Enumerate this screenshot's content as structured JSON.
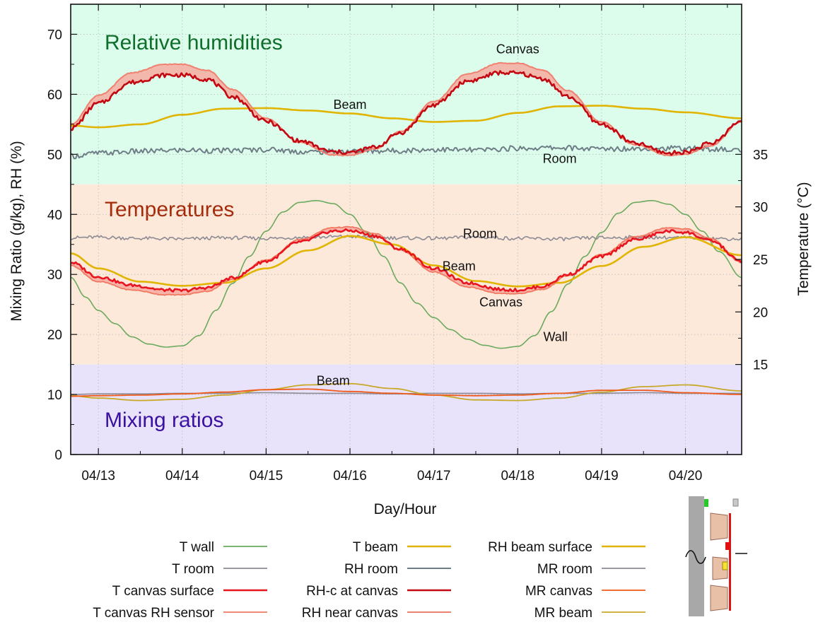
{
  "chart_data": {
    "type": "line",
    "xlabel": "Day/Hour",
    "ylabel_left": "Mixing Ratio (g/kg), RH (%)",
    "ylabel_right": "Temperature (°C)",
    "xlim": [
      12.67,
      20.67
    ],
    "ylim_left": [
      0,
      75
    ],
    "ylim_right_note": "right axis: 15 at left 15, 35 at left 50",
    "x_ticks": [
      {
        "value": 13,
        "label": "04/13"
      },
      {
        "value": 14,
        "label": "04/14"
      },
      {
        "value": 15,
        "label": "04/15"
      },
      {
        "value": 16,
        "label": "04/16"
      },
      {
        "value": 17,
        "label": "04/17"
      },
      {
        "value": 18,
        "label": "04/18"
      },
      {
        "value": 19,
        "label": "04/19"
      },
      {
        "value": 20,
        "label": "04/20"
      }
    ],
    "y_ticks_left": [
      {
        "value": 0,
        "label": "0"
      },
      {
        "value": 10,
        "label": "10"
      },
      {
        "value": 20,
        "label": "20"
      },
      {
        "value": 30,
        "label": "30"
      },
      {
        "value": 40,
        "label": "40"
      },
      {
        "value": 50,
        "label": "50"
      },
      {
        "value": 60,
        "label": "60"
      },
      {
        "value": 70,
        "label": "70"
      }
    ],
    "y_ticks_right": [
      {
        "value": 15,
        "label": "15"
      },
      {
        "value": 20,
        "label": "20"
      },
      {
        "value": 25,
        "label": "25"
      },
      {
        "value": 30,
        "label": "30"
      },
      {
        "value": 35,
        "label": "35"
      }
    ],
    "grid": true,
    "bands": [
      {
        "name": "Relative humidities",
        "from": 45,
        "to": 75,
        "fill": "#dcfcec",
        "text_color": "#0f6e2a"
      },
      {
        "name": "Temperatures",
        "from": 15,
        "to": 45,
        "fill": "#fde9da",
        "text_color": "#a42a0a"
      },
      {
        "name": "Mixing ratios",
        "from": 0,
        "to": 15,
        "fill": "#e8e3fb",
        "text_color": "#3a10a0"
      }
    ],
    "annotations": [
      {
        "text": "Canvas",
        "x": 18.0,
        "y": 67.5
      },
      {
        "text": "Beam",
        "x": 16.0,
        "y": 58.3
      },
      {
        "text": "Room",
        "x": 18.5,
        "y": 49.3
      },
      {
        "text": "Room",
        "x": 17.55,
        "y": 36.8
      },
      {
        "text": "Beam",
        "x": 17.3,
        "y": 31.4
      },
      {
        "text": "Canvas",
        "x": 17.8,
        "y": 25.4
      },
      {
        "text": "Wall",
        "x": 18.45,
        "y": 19.6
      },
      {
        "text": "Beam",
        "x": 15.8,
        "y": 12.3
      }
    ],
    "series": [
      {
        "name": "T wall",
        "color": "#6aaa5e",
        "width": 1.6,
        "x": [
          12.67,
          12.85,
          13.0,
          13.2,
          13.4,
          13.6,
          13.8,
          14.0,
          14.2,
          14.4,
          14.6,
          14.8,
          15.0,
          15.2,
          15.4,
          15.6,
          15.8,
          16.0,
          16.2,
          16.4,
          16.6,
          16.8,
          17.0,
          17.2,
          17.4,
          17.6,
          17.8,
          18.0,
          18.2,
          18.4,
          18.6,
          18.8,
          19.0,
          19.2,
          19.4,
          19.6,
          19.8,
          20.0,
          20.2,
          20.4,
          20.67
        ],
        "y": [
          29.5,
          26.2,
          24.0,
          21.8,
          19.6,
          18.4,
          17.9,
          18.1,
          19.8,
          24.0,
          28.5,
          33.0,
          37.2,
          40.4,
          42.0,
          42.3,
          41.8,
          40.0,
          37.0,
          33.0,
          28.6,
          25.2,
          22.8,
          20.8,
          19.2,
          18.2,
          17.7,
          18.0,
          19.8,
          23.8,
          28.4,
          33.0,
          37.0,
          40.2,
          42.0,
          42.3,
          41.7,
          40.0,
          37.2,
          33.8,
          29.5
        ]
      },
      {
        "name": "T room",
        "color": "#8c8a94",
        "width": 1.6,
        "x": [
          12.67,
          13.0,
          13.5,
          14.0,
          14.5,
          15.0,
          15.5,
          16.0,
          16.5,
          17.0,
          17.5,
          18.0,
          18.5,
          19.0,
          19.5,
          20.0,
          20.67
        ],
        "y": [
          36.1,
          36.2,
          36.0,
          35.9,
          36.1,
          36.0,
          36.2,
          36.3,
          36.1,
          36.0,
          36.2,
          36.0,
          35.9,
          36.1,
          36.2,
          36.1,
          35.9
        ]
      },
      {
        "name": "T canvas surface",
        "color": "#e8141e",
        "width": 2.6,
        "x": [
          12.67,
          13.0,
          13.4,
          13.8,
          14.0,
          14.3,
          14.6,
          15.0,
          15.4,
          15.8,
          16.0,
          16.3,
          16.6,
          17.0,
          17.4,
          17.8,
          18.0,
          18.3,
          18.6,
          19.0,
          19.4,
          19.8,
          20.0,
          20.3,
          20.67
        ],
        "y": [
          32.0,
          29.6,
          28.2,
          27.4,
          27.3,
          27.8,
          29.4,
          32.2,
          35.4,
          37.2,
          37.3,
          36.4,
          34.2,
          31.0,
          28.6,
          27.5,
          27.4,
          28.0,
          30.0,
          33.0,
          35.8,
          37.2,
          37.0,
          35.6,
          32.2
        ]
      },
      {
        "name": "T canvas RH sensor",
        "color": "#f07860",
        "width": 1.8,
        "x": [
          12.67,
          13.0,
          13.4,
          13.8,
          14.0,
          14.3,
          14.6,
          15.0,
          15.4,
          15.8,
          16.0,
          16.3,
          16.6,
          17.0,
          17.4,
          17.8,
          18.0,
          18.3,
          18.6,
          19.0,
          19.4,
          19.8,
          20.0,
          20.3,
          20.67
        ],
        "y": [
          31.5,
          28.8,
          27.4,
          26.6,
          26.6,
          27.2,
          29.2,
          32.4,
          35.8,
          37.8,
          37.9,
          36.8,
          34.0,
          30.4,
          27.9,
          26.8,
          26.8,
          27.5,
          29.8,
          33.3,
          36.3,
          37.8,
          37.6,
          36.0,
          32.0
        ]
      },
      {
        "name": "T beam",
        "color": "#e0b400",
        "width": 2.6,
        "x": [
          12.67,
          13.0,
          13.5,
          14.0,
          14.5,
          15.0,
          15.5,
          16.0,
          16.5,
          17.0,
          17.5,
          18.0,
          18.5,
          19.0,
          19.5,
          20.0,
          20.67
        ],
        "y": [
          33.5,
          31.0,
          28.8,
          28.1,
          28.6,
          31.0,
          34.0,
          36.4,
          35.0,
          31.5,
          28.9,
          28.0,
          28.6,
          31.4,
          34.6,
          36.2,
          33.2
        ]
      },
      {
        "name": "RH room",
        "color": "#6e7d86",
        "width": 2.0,
        "x": [
          12.67,
          13.0,
          13.5,
          14.0,
          14.5,
          15.0,
          15.5,
          16.0,
          16.5,
          17.0,
          17.5,
          18.0,
          18.5,
          19.0,
          19.5,
          20.0,
          20.67
        ],
        "y": [
          49.7,
          50.2,
          50.5,
          50.7,
          50.6,
          50.8,
          50.4,
          50.5,
          50.6,
          50.8,
          50.7,
          51.0,
          51.1,
          50.9,
          51.0,
          51.0,
          50.7
        ]
      },
      {
        "name": "RH-c at canvas",
        "color": "#c40812",
        "width": 2.6,
        "x": [
          12.67,
          13.0,
          13.4,
          13.8,
          14.0,
          14.3,
          14.6,
          15.0,
          15.4,
          15.8,
          16.0,
          16.3,
          16.6,
          17.0,
          17.4,
          17.8,
          18.0,
          18.3,
          18.6,
          19.0,
          19.4,
          19.8,
          20.0,
          20.3,
          20.67
        ],
        "y": [
          54.3,
          58.5,
          62.0,
          63.2,
          63.2,
          62.5,
          59.6,
          55.5,
          52.2,
          50.4,
          50.3,
          51.2,
          53.6,
          58.2,
          62.2,
          63.6,
          63.5,
          62.6,
          59.6,
          55.0,
          51.8,
          50.2,
          50.4,
          51.8,
          55.5
        ]
      },
      {
        "name": "RH near canvas",
        "color": "#f08070",
        "width": 2.0,
        "x": [
          12.67,
          13.0,
          13.4,
          13.8,
          14.0,
          14.3,
          14.6,
          15.0,
          15.4,
          15.8,
          16.0,
          16.3,
          16.6,
          17.0,
          17.4,
          17.8,
          18.0,
          18.3,
          18.6,
          19.0,
          19.4,
          19.8,
          20.0,
          20.3,
          20.67
        ],
        "y": [
          55.0,
          59.8,
          63.6,
          65.0,
          65.0,
          64.0,
          60.8,
          56.0,
          52.0,
          49.9,
          49.8,
          50.9,
          53.8,
          58.8,
          63.4,
          65.2,
          65.2,
          64.0,
          60.6,
          55.4,
          51.6,
          49.8,
          50.0,
          51.4,
          55.4
        ]
      },
      {
        "name": "RH beam surface",
        "color": "#e0b400",
        "width": 2.6,
        "x": [
          12.67,
          13.0,
          13.5,
          14.0,
          14.5,
          15.0,
          15.5,
          16.0,
          16.5,
          17.0,
          17.5,
          18.0,
          18.5,
          19.0,
          19.5,
          20.0,
          20.67
        ],
        "y": [
          54.8,
          54.5,
          55.0,
          56.6,
          57.6,
          57.7,
          57.3,
          56.8,
          56.0,
          55.4,
          55.6,
          56.9,
          58.0,
          58.1,
          57.6,
          57.0,
          56.0
        ]
      },
      {
        "name": "MR room",
        "color": "#8c8a94",
        "width": 1.6,
        "x": [
          12.67,
          13.0,
          13.5,
          14.0,
          14.5,
          15.0,
          15.5,
          16.0,
          16.5,
          17.0,
          17.5,
          18.0,
          18.5,
          19.0,
          19.5,
          20.0,
          20.67
        ],
        "y": [
          10.0,
          10.1,
          10.1,
          10.2,
          10.2,
          10.3,
          10.2,
          10.2,
          10.1,
          10.2,
          10.2,
          10.1,
          10.2,
          10.2,
          10.3,
          10.2,
          10.2
        ]
      },
      {
        "name": "MR canvas",
        "color": "#f05a1a",
        "width": 1.8,
        "x": [
          12.67,
          13.0,
          13.5,
          14.0,
          14.5,
          15.0,
          15.5,
          16.0,
          16.5,
          17.0,
          17.5,
          18.0,
          18.5,
          19.0,
          19.5,
          20.0,
          20.67
        ],
        "y": [
          9.7,
          9.8,
          9.9,
          10.1,
          10.4,
          10.8,
          10.9,
          10.5,
          10.2,
          9.9,
          9.8,
          9.9,
          10.2,
          10.7,
          10.7,
          10.3,
          10.0
        ]
      },
      {
        "name": "MR beam",
        "color": "#c8a828",
        "width": 1.8,
        "x": [
          12.67,
          13.0,
          13.5,
          14.0,
          14.5,
          15.0,
          15.5,
          16.0,
          16.5,
          17.0,
          17.5,
          18.0,
          18.5,
          19.0,
          19.5,
          20.0,
          20.67
        ],
        "y": [
          9.8,
          9.4,
          9.0,
          9.2,
          9.9,
          10.8,
          11.6,
          11.8,
          11.0,
          9.9,
          9.1,
          9.0,
          9.4,
          10.4,
          11.3,
          11.6,
          10.6
        ]
      }
    ],
    "fill_between": [
      {
        "between": [
          "RH near canvas",
          "RH-c at canvas"
        ],
        "color": "#f7a69c",
        "opacity": 0.8
      },
      {
        "between": [
          "T canvas RH sensor",
          "T canvas surface"
        ],
        "color": "#f7a69c",
        "opacity": 0.8
      }
    ],
    "legend": {
      "placement": "bottom",
      "columns": [
        [
          "T wall",
          "T room",
          "T canvas surface",
          "T canvas RH sensor"
        ],
        [
          "T beam",
          "RH room",
          "RH-c at canvas",
          "RH near canvas"
        ],
        [
          "RH beam surface",
          "MR room",
          "MR canvas",
          "MR beam"
        ]
      ]
    },
    "inset_diagram": {
      "icons": [
        "wall-icon",
        "sine-wave-icon",
        "canvas-icon",
        "stretcher-bar-icon",
        "sensor-green",
        "sensor-grey",
        "sensor-red",
        "sensor-yellow"
      ],
      "colors": {
        "wall": "#a8a8a8",
        "stretcher": "#e8c0a8",
        "canvas": "#d81818",
        "green": "#28c828",
        "red": "#e01010",
        "yellow": "#f8e030"
      }
    }
  }
}
